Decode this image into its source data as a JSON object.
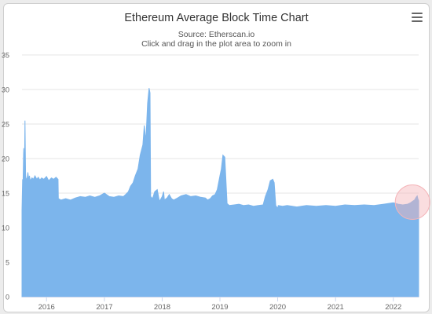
{
  "header": {
    "title": "Ethereum Average Block Time Chart",
    "source": "Source: Etherscan.io",
    "hint": "Click and drag in the plot area to zoom in"
  },
  "colors": {
    "fill": "#7cb5ec",
    "grid": "#e6e6e6",
    "axis": "#ccd6eb",
    "tick_text": "#666666",
    "highlight": "#f4b4b8"
  },
  "icons": {
    "menu": "hamburger-menu-icon"
  },
  "chart_data": {
    "type": "area",
    "title": "Ethereum Average Block Time Chart",
    "subtitle": "Source: Etherscan.io",
    "xlabel": "",
    "ylabel": "",
    "ylim": [
      0,
      35
    ],
    "xlim": [
      "2015-07-30",
      "2022-06-10"
    ],
    "grid": true,
    "legend": "none",
    "yticks": [
      0,
      5,
      10,
      15,
      20,
      25,
      30,
      35
    ],
    "xticks": [
      "2016",
      "2017",
      "2018",
      "2019",
      "2020",
      "2021",
      "2022"
    ],
    "series": [
      {
        "x": [
          "2015-07-30",
          "2015-08-03",
          "2015-08-06",
          "2015-08-10",
          "2015-08-14",
          "2015-08-18",
          "2015-08-22",
          "2015-08-26",
          "2015-09-01",
          "2015-09-05",
          "2015-09-10",
          "2015-09-15",
          "2015-09-20",
          "2015-10-01",
          "2015-10-10",
          "2015-10-20",
          "2015-11-01",
          "2015-11-10",
          "2015-11-20",
          "2015-12-01",
          "2015-12-15",
          "2016-01-01",
          "2016-01-15",
          "2016-02-01",
          "2016-02-15",
          "2016-03-01",
          "2016-03-14",
          "2016-03-16",
          "2016-04-01",
          "2016-05-01",
          "2016-06-01",
          "2016-07-01",
          "2016-08-01",
          "2016-09-01",
          "2016-10-01",
          "2016-11-01",
          "2016-12-01",
          "2017-01-01",
          "2017-02-01",
          "2017-03-01",
          "2017-04-01",
          "2017-05-01",
          "2017-05-15",
          "2017-06-01",
          "2017-06-15",
          "2017-07-01",
          "2017-07-15",
          "2017-08-01",
          "2017-08-15",
          "2017-09-01",
          "2017-09-10",
          "2017-09-20",
          "2017-10-01",
          "2017-10-10",
          "2017-10-16",
          "2017-10-20",
          "2017-11-01",
          "2017-11-15",
          "2017-12-01",
          "2017-12-15",
          "2018-01-01",
          "2018-01-10",
          "2018-01-15",
          "2018-02-01",
          "2018-02-15",
          "2018-03-01",
          "2018-03-15",
          "2018-04-01",
          "2018-05-01",
          "2018-06-01",
          "2018-07-01",
          "2018-08-01",
          "2018-09-01",
          "2018-10-01",
          "2018-10-15",
          "2018-11-01",
          "2018-11-15",
          "2018-12-01",
          "2018-12-15",
          "2019-01-01",
          "2019-01-10",
          "2019-01-20",
          "2019-02-01",
          "2019-02-15",
          "2019-03-01",
          "2019-04-01",
          "2019-05-01",
          "2019-06-01",
          "2019-07-01",
          "2019-08-01",
          "2019-09-01",
          "2019-10-01",
          "2019-10-15",
          "2019-11-01",
          "2019-11-15",
          "2019-12-01",
          "2019-12-10",
          "2019-12-20",
          "2020-01-01",
          "2020-01-05",
          "2020-02-01",
          "2020-03-01",
          "2020-05-01",
          "2020-07-01",
          "2020-09-01",
          "2020-11-01",
          "2021-01-01",
          "2021-03-01",
          "2021-05-01",
          "2021-07-01",
          "2021-09-01",
          "2021-11-01",
          "2022-01-01",
          "2022-02-01",
          "2022-03-01",
          "2022-04-01",
          "2022-04-20",
          "2022-05-01",
          "2022-05-15",
          "2022-05-25",
          "2022-06-01",
          "2022-06-05",
          "2022-06-10"
        ],
        "y": [
          12.5,
          17.0,
          16.8,
          21.5,
          17.0,
          25.5,
          17.5,
          16.9,
          17.2,
          18.0,
          17.0,
          17.5,
          16.8,
          17.2,
          17.0,
          17.5,
          17.0,
          17.3,
          16.9,
          17.2,
          17.0,
          17.4,
          16.8,
          17.2,
          17.0,
          17.3,
          17.0,
          14.2,
          14.0,
          14.2,
          14.0,
          14.3,
          14.5,
          14.4,
          14.6,
          14.4,
          14.6,
          15.0,
          14.5,
          14.4,
          14.6,
          14.5,
          14.8,
          15.2,
          16.0,
          16.5,
          17.5,
          18.5,
          20.5,
          22.0,
          24.8,
          22.5,
          28.0,
          30.2,
          29.5,
          14.5,
          14.2,
          15.2,
          15.5,
          13.8,
          14.5,
          15.2,
          14.0,
          14.3,
          14.8,
          14.2,
          14.0,
          14.2,
          14.6,
          14.8,
          14.5,
          14.6,
          14.4,
          14.3,
          14.0,
          14.2,
          14.6,
          14.8,
          15.5,
          17.5,
          18.5,
          20.5,
          20.2,
          13.5,
          13.2,
          13.3,
          13.4,
          13.2,
          13.3,
          13.1,
          13.2,
          13.3,
          14.5,
          15.5,
          16.8,
          17.0,
          16.5,
          13.2,
          12.8,
          13.2,
          13.1,
          13.2,
          13.0,
          13.2,
          13.1,
          13.2,
          13.1,
          13.3,
          13.2,
          13.3,
          13.2,
          13.4,
          13.6,
          13.4,
          13.3,
          13.4,
          13.6,
          13.8,
          14.0,
          14.4,
          14.6,
          14.2,
          13.9
        ]
      }
    ]
  }
}
